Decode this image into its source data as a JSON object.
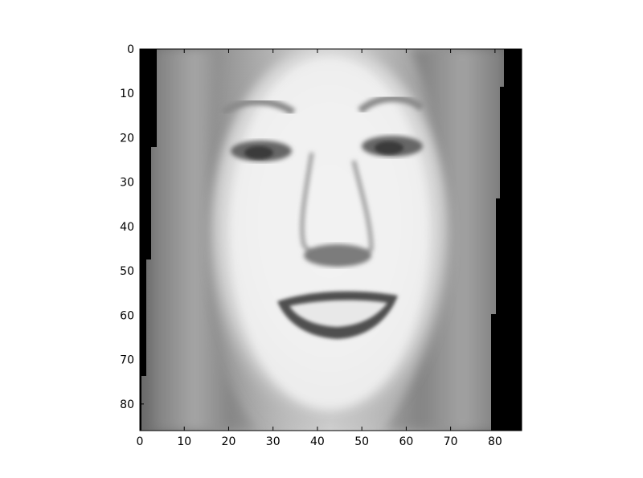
{
  "chart_data": {
    "type": "heatmap",
    "colormap": "gray",
    "image_size": [
      86,
      86
    ],
    "xlim": [
      0,
      86
    ],
    "ylim": [
      86,
      0
    ],
    "y_inverted": true,
    "x_ticks": [
      0,
      10,
      20,
      30,
      40,
      50,
      60,
      70,
      80
    ],
    "y_ticks": [
      0,
      10,
      20,
      30,
      40,
      50,
      60,
      70,
      80
    ],
    "x_tick_labels": [
      "0",
      "10",
      "20",
      "30",
      "40",
      "50",
      "60",
      "70",
      "80"
    ],
    "y_tick_labels": [
      "0",
      "10",
      "20",
      "30",
      "40",
      "50",
      "60",
      "70",
      "80"
    ],
    "content": "grayscale face (smiling person with straight hair) with black padding strips on the left and right edges"
  }
}
